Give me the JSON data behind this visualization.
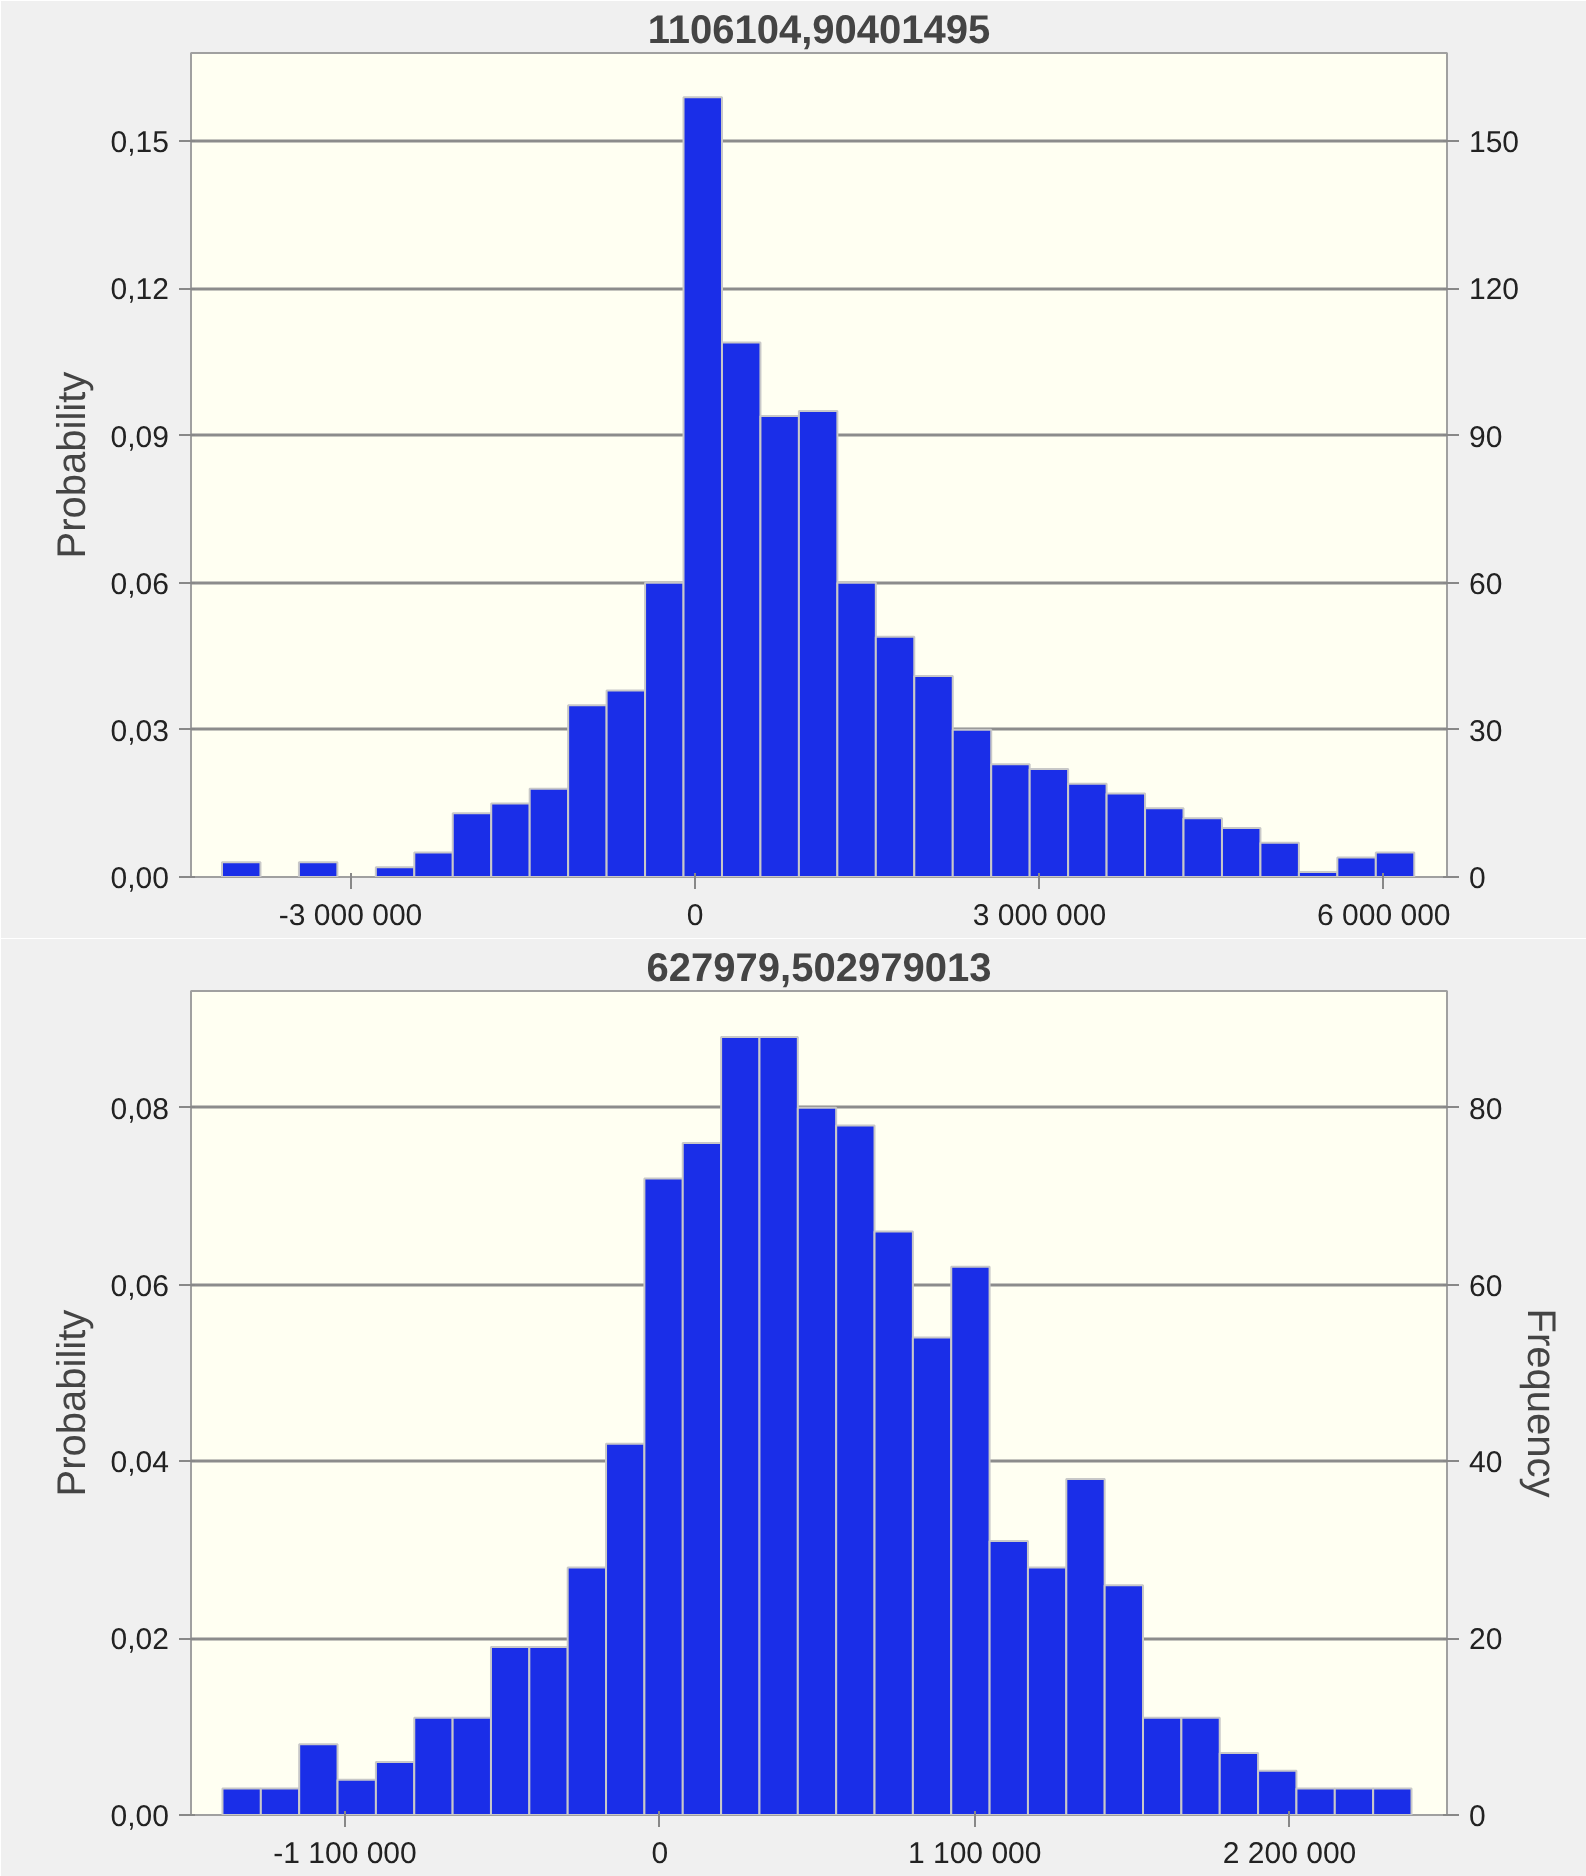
{
  "chart_data": [
    {
      "type": "histogram",
      "title": "1106104,90401495",
      "ylabel": "Probability",
      "bins": [
        -4120000,
        -3785000,
        -3450000,
        -3115000,
        -2780000,
        -2445000,
        -2110000,
        -1775000,
        -1440000,
        -1105000,
        -770000,
        -435000,
        -100000,
        235000,
        570000,
        905000,
        1240000,
        1575000,
        1910000,
        2245000,
        2580000,
        2915000,
        3250000,
        3585000,
        3920000,
        4255000,
        4590000,
        4925000,
        5260000,
        5595000,
        5930000,
        6265000
      ],
      "values": [
        0.003,
        0,
        0.003,
        0,
        0.002,
        0.005,
        0.013,
        0.015,
        0.018,
        0.035,
        0.038,
        0.06,
        0.159,
        0.109,
        0.094,
        0.095,
        0.06,
        0.049,
        0.041,
        0.03,
        0.023,
        0.022,
        0.019,
        0.017,
        0.014,
        0.012,
        0.01,
        0.007,
        0.001,
        0.004,
        0.005
      ],
      "color": "#1a2ee8",
      "xlim": [
        -4390000,
        6550000
      ],
      "xticks": [
        {
          "value": -3000000,
          "label": "-3 000 000"
        },
        0,
        {
          "value": 3000000,
          "label": "3 000 000"
        },
        {
          "value": 6000000,
          "label": "6 000 000"
        }
      ],
      "ylim": [
        0,
        0.168
      ],
      "yticks": [
        {
          "value": 0,
          "label": "0,00"
        },
        {
          "value": 0.03,
          "label": "0,03"
        },
        {
          "value": 0.06,
          "label": "0,06"
        },
        {
          "value": 0.09,
          "label": "0,09"
        },
        {
          "value": 0.12,
          "label": "0,12"
        },
        {
          "value": 0.15,
          "label": "0,15"
        }
      ],
      "y2lim": [
        0,
        168
      ],
      "y2ticks": [
        0,
        30,
        60,
        90,
        120,
        150
      ],
      "grid": "y"
    },
    {
      "type": "histogram",
      "title": "627979,502979013",
      "ylabel": "Probability",
      "y2label": "Frequency",
      "bins": [
        -1528000,
        -1394000,
        -1260000,
        -1126000,
        -992000,
        -858000,
        -724000,
        -590000,
        -456000,
        -322000,
        -188000,
        -54000,
        80000,
        214000,
        348000,
        482000,
        616000,
        750000,
        884000,
        1018000,
        1152000,
        1286000,
        1420000,
        1554000,
        1688000,
        1822000,
        1956000,
        2090000,
        2224000,
        2358000,
        2492000,
        2626000
      ],
      "values": [
        0.003,
        0.003,
        0.008,
        0.004,
        0.006,
        0.011,
        0.011,
        0.019,
        0.019,
        0.028,
        0.042,
        0.072,
        0.076,
        0.088,
        0.088,
        0.08,
        0.078,
        0.066,
        0.054,
        0.062,
        0.031,
        0.028,
        0.038,
        0.026,
        0.011,
        0.011,
        0.007,
        0.005,
        0.003,
        0.003,
        0.003
      ],
      "color": "#1a2ee8",
      "xlim": [
        -1638000,
        2750000
      ],
      "xticks": [
        {
          "value": -1100000,
          "label": "-1 100 000"
        },
        0,
        {
          "value": 1100000,
          "label": "1 100 000"
        },
        {
          "value": 2200000,
          "label": "2 200 000"
        }
      ],
      "ylim": [
        0,
        0.0932
      ],
      "yticks": [
        {
          "value": 0,
          "label": "0,00"
        },
        {
          "value": 0.02,
          "label": "0,02"
        },
        {
          "value": 0.04,
          "label": "0,04"
        },
        {
          "value": 0.06,
          "label": "0,06"
        },
        {
          "value": 0.08,
          "label": "0,08"
        }
      ],
      "y2lim": [
        0,
        93.2
      ],
      "y2ticks": [
        0,
        20,
        40,
        60,
        80
      ],
      "grid": "y"
    }
  ]
}
